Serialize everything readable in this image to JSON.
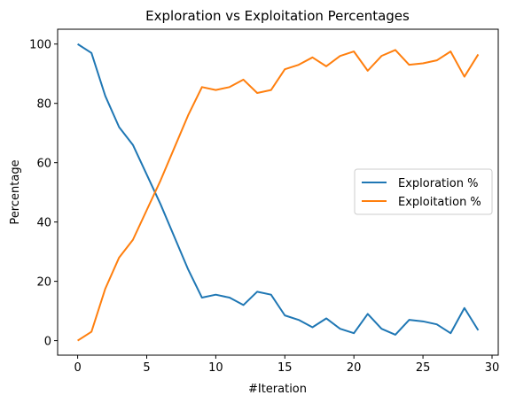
{
  "chart_data": {
    "type": "line",
    "title": "Exploration vs Exploitation Percentages",
    "xlabel": "#Iteration",
    "ylabel": "Percentage",
    "xlim": [
      -1.45,
      30.45
    ],
    "ylim": [
      -4.9,
      105
    ],
    "xticks": [
      0,
      5,
      10,
      15,
      20,
      25,
      30
    ],
    "yticks": [
      0,
      20,
      40,
      60,
      80,
      100
    ],
    "grid": false,
    "legend_position": "center-right",
    "x": [
      0,
      1,
      2,
      3,
      4,
      5,
      6,
      7,
      8,
      9,
      10,
      11,
      12,
      13,
      14,
      15,
      16,
      17,
      18,
      19,
      20,
      21,
      22,
      23,
      24,
      25,
      26,
      27,
      28,
      29
    ],
    "series": [
      {
        "name": "Exploration %",
        "color": "#1f77b4",
        "values": [
          100,
          97,
          82.5,
          72,
          66,
          56,
          46,
          35,
          24,
          14.5,
          15.5,
          14.5,
          12,
          16.5,
          15.5,
          8.5,
          7,
          4.5,
          7.5,
          4,
          2.5,
          9,
          4,
          2,
          7,
          6.5,
          5.5,
          2.5,
          11,
          3.5
        ]
      },
      {
        "name": "Exploitation %",
        "color": "#ff7f0e",
        "values": [
          0,
          3,
          17.5,
          28,
          34,
          44,
          54,
          65,
          76,
          85.5,
          84.5,
          85.5,
          88,
          83.5,
          84.5,
          91.5,
          93,
          95.5,
          92.5,
          96,
          97.5,
          91,
          96,
          98,
          93,
          93.5,
          94.5,
          97.5,
          89,
          96.5
        ]
      }
    ]
  }
}
